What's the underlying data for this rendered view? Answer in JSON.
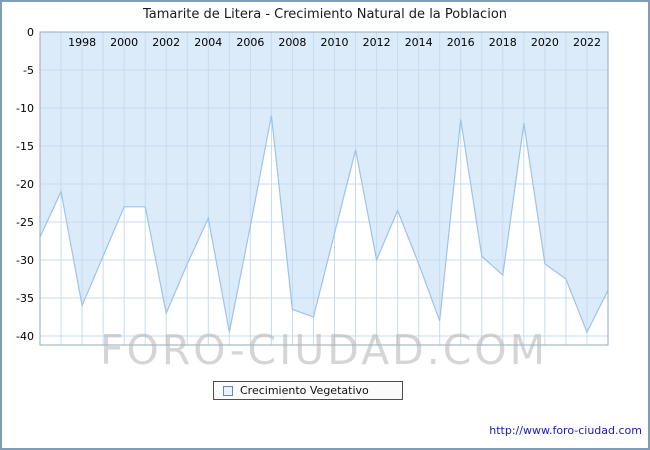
{
  "watermark": "FORO-CIUDAD.COM",
  "footer_url": "http://www.foro-ciudad.com",
  "colors": {
    "fill": "#dcebfa",
    "line": "#9fc3e4",
    "grid": "#c6dbf0",
    "plot_border": "#93a8c4",
    "axis_text": "#000000",
    "frame": "#7f9db9",
    "url_text": "#1a1ab4",
    "watermark_gray": "#b2b2b2"
  },
  "chart_data": {
    "type": "area",
    "title": "Tamarite de Litera - Crecimiento Natural de la Poblacion",
    "x": [
      1996,
      1997,
      1998,
      1999,
      2000,
      2001,
      2002,
      2003,
      2004,
      2005,
      2006,
      2007,
      2008,
      2009,
      2010,
      2011,
      2012,
      2013,
      2014,
      2015,
      2016,
      2017,
      2018,
      2019,
      2020,
      2021,
      2022,
      2023
    ],
    "series": [
      {
        "name": "Crecimiento Vegetativo",
        "values": [
          -27,
          -21,
          -36,
          -29.5,
          -23,
          -23,
          -37,
          -30.5,
          -24.5,
          -39.5,
          -25.5,
          -11,
          -36.5,
          -37.5,
          -26.5,
          -15.5,
          -30,
          -23.5,
          -30.5,
          -38,
          -11.5,
          -29.5,
          -32,
          -12,
          -30.5,
          -32.5,
          -39.5,
          -34
        ]
      }
    ],
    "xtick_labels": [
      "1998",
      "2000",
      "2002",
      "2004",
      "2006",
      "2008",
      "2010",
      "2012",
      "2014",
      "2016",
      "2018",
      "2020",
      "2022"
    ],
    "yticks": [
      0,
      -5,
      -10,
      -15,
      -20,
      -25,
      -30,
      -35,
      -40
    ],
    "ylim": [
      -40,
      0
    ],
    "xlabel": "",
    "ylabel": "",
    "grid": true,
    "legend_position": "bottom-center",
    "fill_direction": "above-line-to-zero"
  }
}
